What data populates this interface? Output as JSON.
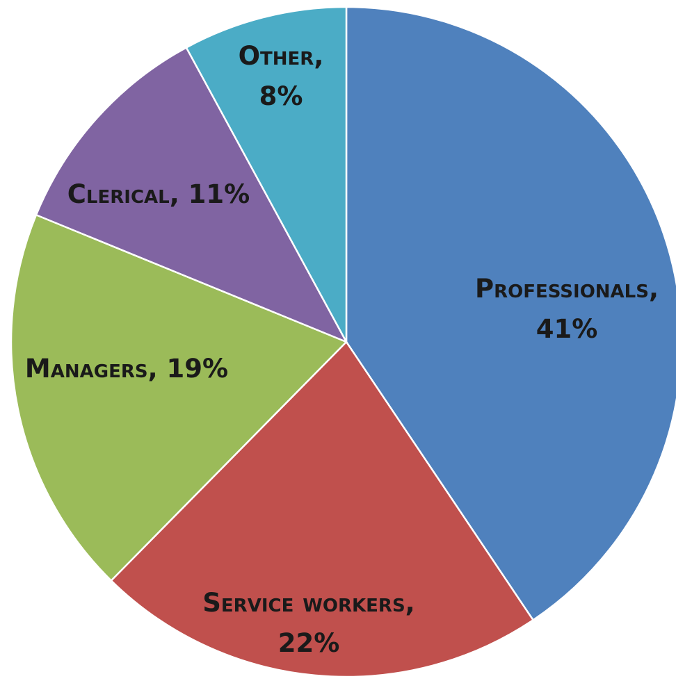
{
  "chart_data": {
    "type": "pie",
    "slices": [
      {
        "label": "Professionals",
        "percent_label": "41%",
        "value": 41,
        "color": "#4F81BD"
      },
      {
        "label": "Service workers",
        "percent_label": "22%",
        "value": 22,
        "color": "#C0504D"
      },
      {
        "label": "Managers",
        "percent_label": "19%",
        "value": 19,
        "color": "#9BBB59"
      },
      {
        "label": "Clerical",
        "percent_label": "11%",
        "value": 11,
        "color": "#8064A2"
      },
      {
        "label": "Other",
        "percent_label": "8%",
        "value": 8,
        "color": "#4BACC6"
      }
    ],
    "start_angle": "12 o'clock",
    "direction": "clockwise",
    "legend": "none",
    "data_labels": "category and percentage"
  }
}
